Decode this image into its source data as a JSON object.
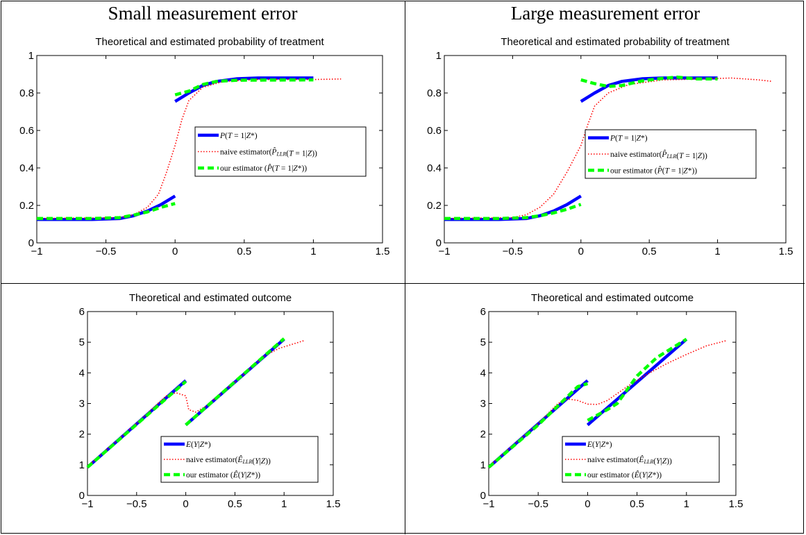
{
  "columns": [
    "Small measurement error",
    "Large measurement error"
  ],
  "colors": {
    "true": "#0000ff",
    "naive": "#ff0000",
    "ours": "#00ff00"
  },
  "chart_data": [
    {
      "type": "line",
      "panel": "top-left",
      "title": "Theoretical and estimated probability of treatment",
      "xlim": [
        -1,
        1.5
      ],
      "ylim": [
        0,
        1
      ],
      "xticks": [
        "−1",
        "−0.5",
        "0",
        "0.5",
        "1",
        "1.5"
      ],
      "yticks": [
        "0",
        "0.2",
        "0.4",
        "0.6",
        "0.8",
        "1"
      ],
      "legend_position": "center-right",
      "series": [
        {
          "name": "P(T=1|Z*)",
          "style": "solid",
          "segments": [
            [
              [
                -1,
                0.125
              ],
              [
                -0.6,
                0.125
              ],
              [
                -0.4,
                0.13
              ],
              [
                -0.3,
                0.145
              ],
              [
                -0.2,
                0.17
              ],
              [
                -0.1,
                0.205
              ],
              [
                0,
                0.25
              ]
            ],
            [
              [
                0,
                0.755
              ],
              [
                0.1,
                0.8
              ],
              [
                0.2,
                0.84
              ],
              [
                0.3,
                0.862
              ],
              [
                0.45,
                0.876
              ],
              [
                0.6,
                0.88
              ],
              [
                1,
                0.88
              ]
            ]
          ]
        },
        {
          "name": "naive estimator(P̂_LLR(T=1|Z))",
          "style": "dotted",
          "segments": [
            [
              [
                -1,
                0.13
              ],
              [
                -0.4,
                0.135
              ],
              [
                -0.3,
                0.15
              ],
              [
                -0.2,
                0.19
              ],
              [
                -0.12,
                0.26
              ],
              [
                -0.06,
                0.38
              ],
              [
                0,
                0.52
              ],
              [
                0.05,
                0.66
              ],
              [
                0.1,
                0.76
              ],
              [
                0.2,
                0.83
              ],
              [
                0.35,
                0.862
              ],
              [
                0.6,
                0.872
              ],
              [
                1,
                0.872
              ],
              [
                1.2,
                0.875
              ]
            ]
          ]
        },
        {
          "name": "our estimator (P̂(T=1|Z*))",
          "style": "dashed",
          "segments": [
            [
              [
                -1,
                0.13
              ],
              [
                -0.6,
                0.13
              ],
              [
                -0.4,
                0.135
              ],
              [
                -0.3,
                0.148
              ],
              [
                -0.2,
                0.165
              ],
              [
                -0.1,
                0.19
              ],
              [
                0,
                0.21
              ]
            ],
            [
              [
                0,
                0.79
              ],
              [
                0.1,
                0.81
              ],
              [
                0.2,
                0.845
              ],
              [
                0.3,
                0.862
              ],
              [
                0.45,
                0.868
              ],
              [
                1,
                0.87
              ]
            ]
          ]
        }
      ]
    },
    {
      "type": "line",
      "panel": "top-right",
      "title": "Theoretical and estimated probability of treatment",
      "xlim": [
        -1,
        1.5
      ],
      "ylim": [
        0,
        1
      ],
      "xticks": [
        "−1",
        "−0.5",
        "0",
        "0.5",
        "1",
        "1.5"
      ],
      "yticks": [
        "0",
        "0.2",
        "0.4",
        "0.6",
        "0.8",
        "1"
      ],
      "legend_position": "center-right",
      "series": [
        {
          "name": "P(T=1|Z*)",
          "style": "solid",
          "segments": [
            [
              [
                -1,
                0.125
              ],
              [
                -0.6,
                0.125
              ],
              [
                -0.4,
                0.13
              ],
              [
                -0.3,
                0.145
              ],
              [
                -0.2,
                0.17
              ],
              [
                -0.1,
                0.205
              ],
              [
                0,
                0.25
              ]
            ],
            [
              [
                0,
                0.755
              ],
              [
                0.1,
                0.8
              ],
              [
                0.2,
                0.84
              ],
              [
                0.3,
                0.862
              ],
              [
                0.45,
                0.876
              ],
              [
                0.6,
                0.88
              ],
              [
                1,
                0.88
              ]
            ]
          ]
        },
        {
          "name": "naive estimator(P̂_LLR(T=1|Z))",
          "style": "dotted",
          "segments": [
            [
              [
                -1,
                0.13
              ],
              [
                -0.5,
                0.135
              ],
              [
                -0.4,
                0.15
              ],
              [
                -0.3,
                0.19
              ],
              [
                -0.2,
                0.26
              ],
              [
                -0.1,
                0.38
              ],
              [
                0,
                0.52
              ],
              [
                0.05,
                0.63
              ],
              [
                0.1,
                0.73
              ],
              [
                0.2,
                0.8
              ],
              [
                0.35,
                0.845
              ],
              [
                0.6,
                0.87
              ],
              [
                0.9,
                0.875
              ],
              [
                1.1,
                0.88
              ],
              [
                1.3,
                0.87
              ],
              [
                1.4,
                0.862
              ]
            ]
          ]
        },
        {
          "name": "our estimator (P̂(T=1|Z*))",
          "style": "dashed",
          "segments": [
            [
              [
                -1,
                0.13
              ],
              [
                -0.6,
                0.13
              ],
              [
                -0.4,
                0.135
              ],
              [
                -0.3,
                0.145
              ],
              [
                -0.2,
                0.16
              ],
              [
                -0.1,
                0.18
              ],
              [
                0,
                0.205
              ]
            ],
            [
              [
                0,
                0.87
              ],
              [
                0.1,
                0.85
              ],
              [
                0.2,
                0.835
              ],
              [
                0.3,
                0.84
              ],
              [
                0.45,
                0.865
              ],
              [
                0.6,
                0.878
              ],
              [
                0.7,
                0.885
              ],
              [
                0.85,
                0.875
              ],
              [
                1,
                0.875
              ]
            ]
          ]
        }
      ]
    },
    {
      "type": "line",
      "panel": "bottom-left",
      "title": "Theoretical and estimated outcome",
      "xlim": [
        -1,
        1.5
      ],
      "ylim": [
        0,
        6
      ],
      "xticks": [
        "−1",
        "−0.5",
        "0",
        "0.5",
        "1",
        "1.5"
      ],
      "yticks": [
        "0",
        "1",
        "2",
        "3",
        "4",
        "5",
        "6"
      ],
      "legend_position": "center-right",
      "series": [
        {
          "name": "E(Y|Z*)",
          "style": "solid",
          "segments": [
            [
              [
                -1,
                0.92
              ],
              [
                0,
                3.75
              ]
            ],
            [
              [
                0,
                2.3
              ],
              [
                1,
                5.1
              ]
            ]
          ]
        },
        {
          "name": "naive estimator(Ê_LLR(Y|Z))",
          "style": "dotted",
          "segments": [
            [
              [
                -1,
                0.95
              ],
              [
                -0.5,
                2.35
              ],
              [
                -0.2,
                3.25
              ],
              [
                -0.1,
                3.35
              ],
              [
                0,
                3.25
              ],
              [
                0.03,
                2.8
              ],
              [
                0.1,
                2.72
              ],
              [
                0.2,
                2.9
              ],
              [
                0.5,
                3.7
              ],
              [
                0.8,
                4.55
              ],
              [
                0.95,
                4.8
              ],
              [
                1.2,
                5.05
              ]
            ]
          ]
        },
        {
          "name": "our estimator (Ê(Y|Z*))",
          "style": "dashed",
          "segments": [
            [
              [
                -1,
                0.92
              ],
              [
                0,
                3.72
              ]
            ],
            [
              [
                0,
                2.3
              ],
              [
                1,
                5.12
              ]
            ]
          ]
        }
      ]
    },
    {
      "type": "line",
      "panel": "bottom-right",
      "title": "Theoretical and estimated outcome",
      "xlim": [
        -1,
        1.5
      ],
      "ylim": [
        0,
        6
      ],
      "xticks": [
        "−1",
        "−0.5",
        "0",
        "0.5",
        "1",
        "1.5"
      ],
      "yticks": [
        "0",
        "1",
        "2",
        "3",
        "4",
        "5",
        "6"
      ],
      "legend_position": "center-right",
      "series": [
        {
          "name": "E(Y|Z*)",
          "style": "solid",
          "segments": [
            [
              [
                -1,
                0.92
              ],
              [
                0,
                3.75
              ]
            ],
            [
              [
                0,
                2.3
              ],
              [
                1,
                5.1
              ]
            ]
          ]
        },
        {
          "name": "naive estimator(Ê_LLR(Y|Z))",
          "style": "dotted",
          "segments": [
            [
              [
                -1,
                0.95
              ],
              [
                -0.5,
                2.35
              ],
              [
                -0.3,
                3.0
              ],
              [
                -0.2,
                3.15
              ],
              [
                -0.1,
                3.1
              ],
              [
                0,
                2.98
              ],
              [
                0.1,
                2.97
              ],
              [
                0.2,
                3.1
              ],
              [
                0.4,
                3.55
              ],
              [
                0.6,
                3.95
              ],
              [
                0.8,
                4.3
              ],
              [
                1,
                4.6
              ],
              [
                1.2,
                4.88
              ],
              [
                1.4,
                5.05
              ]
            ]
          ]
        },
        {
          "name": "our estimator (Ê(Y|Z*))",
          "style": "dashed",
          "segments": [
            [
              [
                -1,
                0.92
              ],
              [
                -0.5,
                2.3
              ],
              [
                -0.1,
                3.55
              ],
              [
                0,
                3.65
              ]
            ],
            [
              [
                0,
                2.45
              ],
              [
                0.2,
                2.8
              ],
              [
                0.3,
                3.0
              ],
              [
                0.5,
                3.9
              ],
              [
                0.7,
                4.5
              ],
              [
                1,
                5.1
              ]
            ]
          ]
        }
      ]
    }
  ]
}
